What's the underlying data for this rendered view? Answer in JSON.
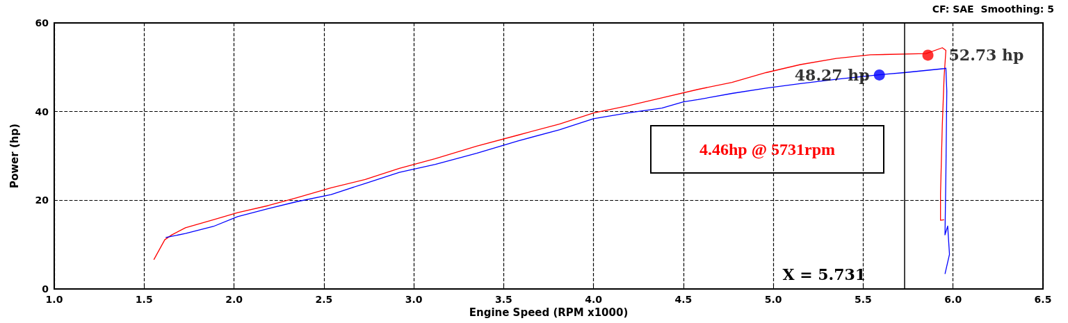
{
  "chart_data": {
    "type": "line",
    "xlabel": "Engine Speed (RPM x1000)",
    "ylabel": "Power (hp)",
    "xlim": [
      1.0,
      6.5
    ],
    "xticks": [
      {
        "value": 1.0,
        "label": "1.0"
      },
      1.5,
      {
        "value": 2.0,
        "label": "2.0"
      },
      2.5,
      {
        "value": 3.0,
        "label": "3.0"
      },
      3.5,
      {
        "value": 4.0,
        "label": "4.0"
      },
      4.5,
      {
        "value": 5.0,
        "label": "5.0"
      },
      5.5,
      {
        "value": 6.0,
        "label": "6.0"
      },
      6.5
    ],
    "ylim": [
      0,
      60
    ],
    "yticks": [
      0,
      20,
      40,
      60
    ],
    "grid": true,
    "marker": "none",
    "line_style": "solid",
    "series": [
      {
        "color": "#ff0000",
        "x": [
          1.554,
          1.615,
          1.654,
          1.73,
          1.885,
          2.02,
          2.19,
          2.35,
          2.54,
          2.73,
          2.92,
          3.12,
          3.35,
          3.58,
          3.81,
          4.0,
          4.19,
          4.38,
          4.58,
          4.77,
          4.96,
          5.15,
          5.35,
          5.54,
          5.85,
          5.94,
          5.96,
          5.95,
          5.94,
          5.93,
          5.93,
          5.95
        ],
        "values": [
          6.6,
          11.1,
          12.2,
          13.8,
          15.6,
          17.2,
          18.8,
          20.6,
          22.8,
          24.7,
          27.2,
          29.4,
          32.2,
          34.7,
          37.2,
          39.7,
          41.3,
          43.1,
          45,
          46.6,
          48.8,
          50.6,
          52.0,
          52.8,
          53.1,
          54.4,
          53.8,
          47.8,
          36.9,
          21.3,
          15.5,
          15.6
        ]
      },
      {
        "color": "#0000ff",
        "x": [
          1.62,
          1.73,
          1.885,
          2.02,
          2.19,
          2.35,
          2.54,
          2.73,
          2.92,
          3.12,
          3.35,
          3.58,
          3.81,
          4.0,
          4.19,
          4.38,
          4.5,
          4.58,
          4.77,
          4.96,
          5.15,
          5.35,
          5.59,
          5.73,
          5.95,
          5.96,
          5.965,
          5.96,
          5.955,
          5.97,
          5.98,
          5.955
        ],
        "values": [
          11.6,
          12.5,
          14.1,
          16.3,
          18.1,
          19.7,
          21.3,
          23.8,
          26.3,
          28.1,
          30.6,
          33.4,
          35.9,
          38.4,
          39.7,
          40.8,
          42.2,
          42.7,
          44.1,
          45.3,
          46.3,
          47.3,
          48.3,
          48.8,
          49.7,
          49.8,
          44.7,
          25.9,
          12.2,
          14.2,
          7.8,
          3.4
        ]
      }
    ],
    "ref_lines": [
      {
        "axis": "x",
        "value": 5.731,
        "label": "X = 5.731",
        "color": "#000000"
      }
    ],
    "annotations": [
      {
        "text": "52.73 hp",
        "x": 5.86,
        "y": 52.73
      },
      {
        "text": "48.27 hp",
        "x": 5.59,
        "y": 48.27
      },
      "4.46hp @ 5731rpm",
      "CF: SAE  Smoothing: 5"
    ]
  }
}
